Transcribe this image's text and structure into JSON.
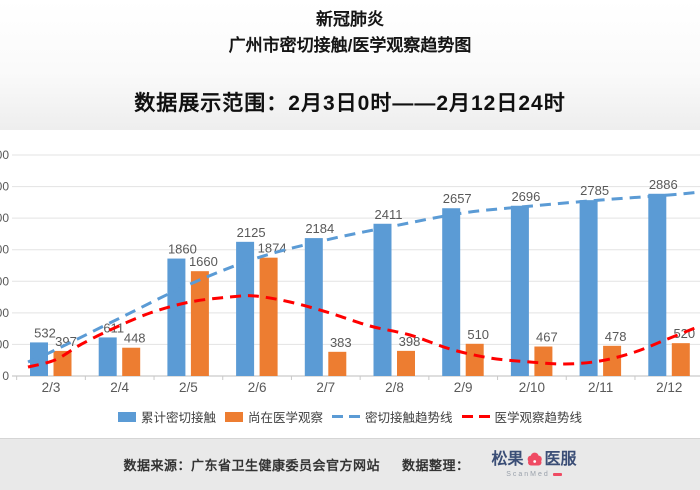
{
  "header": {
    "title_line1": "新冠肺炎",
    "title_line2": "广州市密切接触/医学观察趋势图",
    "subtitle": "数据展示范围：2月3日0时——2月12日24时"
  },
  "chart_data": {
    "type": "bar",
    "title": "广州市密切接触/医学观察趋势图",
    "categories": [
      "2/3",
      "2/4",
      "2/5",
      "2/6",
      "2/7",
      "2/8",
      "2/9",
      "2/10",
      "2/11",
      "2/12"
    ],
    "series": [
      {
        "name": "累计密切接触",
        "color": "#5B9BD5",
        "values": [
          532,
          611,
          1860,
          2125,
          2184,
          2411,
          2657,
          2696,
          2785,
          2886
        ]
      },
      {
        "name": "尚在医学观察",
        "color": "#ED7D31",
        "values": [
          397,
          448,
          1660,
          1874,
          383,
          398,
          510,
          467,
          478,
          520
        ]
      }
    ],
    "trendlines": [
      {
        "name": "密切接触趋势线",
        "color": "#5B9BD5",
        "style": "dashed",
        "fits_series": "累计密切接触"
      },
      {
        "name": "医学观察趋势线",
        "color": "#FF0000",
        "style": "dashed",
        "fits_series": "尚在医学观察"
      }
    ],
    "xlabel": "",
    "ylabel": "",
    "ylim": [
      0,
      3500
    ],
    "ytick_step": 500,
    "grid": true,
    "legend_position": "bottom",
    "value_labels_shown": true
  },
  "footer": {
    "source_text": "数据来源：广东省卫生健康委员会官方网站",
    "curator_label": "数据整理：",
    "logo": {
      "text_left": "松果",
      "text_right": "医服",
      "subtext": "ScanMed"
    }
  },
  "colors": {
    "bar_blue": "#5B9BD5",
    "bar_orange": "#ED7D31",
    "trend_red": "#FF0000",
    "grid_line": "#E3E3E3",
    "axis_line": "#C9C9C9",
    "label_gray": "#595959",
    "logo_navy": "#3B4E76",
    "logo_red": "#EF4B63",
    "footer_bg": "#E9E9E9"
  }
}
